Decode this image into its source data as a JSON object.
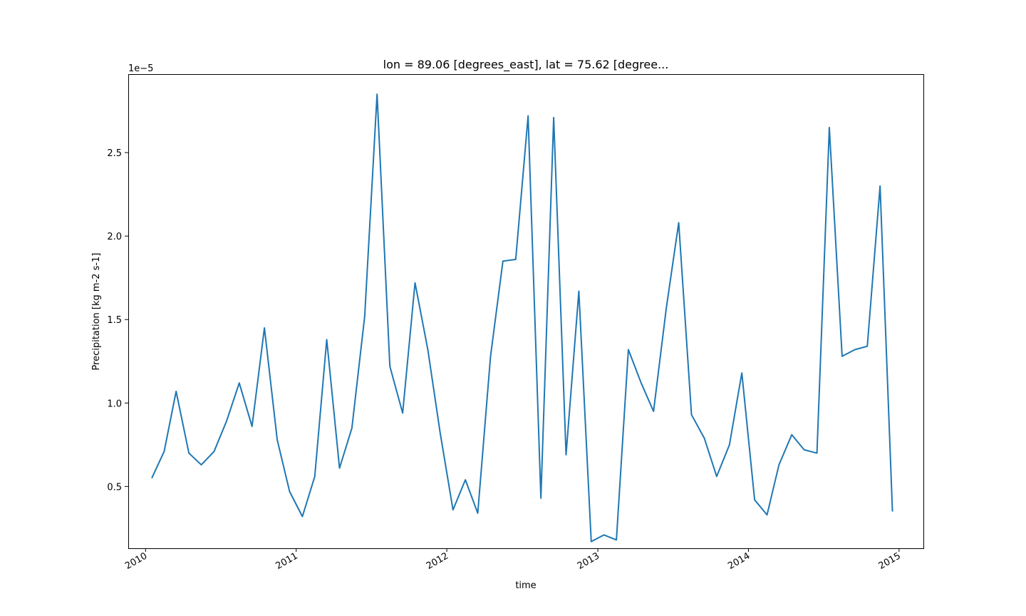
{
  "chart_data": {
    "type": "line",
    "title": "lon = 89.06 [degrees_east], lat = 75.62 [degree...",
    "xlabel": "time",
    "ylabel": "Precipitation [kg m-2 s-1]",
    "y_offset_label": "1e−5",
    "xlim": [
      "2009-11-20",
      "2015-03-01"
    ],
    "ylim": [
      1.3e-06,
      2.97e-05
    ],
    "x_ticks": [
      {
        "value": "2010-01-01",
        "label": "2010"
      },
      {
        "value": "2011-01-01",
        "label": "2011"
      },
      {
        "value": "2012-01-01",
        "label": "2012"
      },
      {
        "value": "2013-01-01",
        "label": "2013"
      },
      {
        "value": "2014-01-01",
        "label": "2014"
      },
      {
        "value": "2015-01-01",
        "label": "2015"
      }
    ],
    "y_ticks": [
      {
        "value": 5e-06,
        "label": "0.5"
      },
      {
        "value": 1e-05,
        "label": "1.0"
      },
      {
        "value": 1.5e-05,
        "label": "1.5"
      },
      {
        "value": 2e-05,
        "label": "2.0"
      },
      {
        "value": 2.5e-05,
        "label": "2.5"
      }
    ],
    "grid": false,
    "line_color": "#1f77b4",
    "series": [
      {
        "x": [
          "2010-01-16",
          "2010-02-15",
          "2010-03-16",
          "2010-04-16",
          "2010-05-16",
          "2010-06-16",
          "2010-07-16",
          "2010-08-16",
          "2010-09-16",
          "2010-10-16",
          "2010-11-16",
          "2010-12-16",
          "2011-01-16",
          "2011-02-15",
          "2011-03-16",
          "2011-04-16",
          "2011-05-16",
          "2011-06-16",
          "2011-07-16",
          "2011-08-16",
          "2011-09-16",
          "2011-10-16",
          "2011-11-16",
          "2011-12-16",
          "2012-01-16",
          "2012-02-15",
          "2012-03-16",
          "2012-04-16",
          "2012-05-16",
          "2012-06-16",
          "2012-07-16",
          "2012-08-16",
          "2012-09-16",
          "2012-10-16",
          "2012-11-16",
          "2012-12-16",
          "2013-01-16",
          "2013-02-15",
          "2013-03-16",
          "2013-04-16",
          "2013-05-16",
          "2013-06-16",
          "2013-07-16",
          "2013-08-16",
          "2013-09-16",
          "2013-10-16",
          "2013-11-16",
          "2013-12-16",
          "2014-01-16",
          "2014-02-15",
          "2014-03-16",
          "2014-04-16",
          "2014-05-16",
          "2014-06-16",
          "2014-07-16",
          "2014-08-16",
          "2014-09-16",
          "2014-10-16",
          "2014-11-16",
          "2014-12-16"
        ],
        "values": [
          5.5e-06,
          7.1e-06,
          1.07e-05,
          7e-06,
          6.3e-06,
          7.1e-06,
          8.9e-06,
          1.12e-05,
          8.6e-06,
          1.45e-05,
          7.8e-06,
          4.7e-06,
          3.2e-06,
          5.6e-06,
          1.38e-05,
          6.1e-06,
          8.5e-06,
          1.52e-05,
          2.85e-05,
          1.22e-05,
          9.4e-06,
          1.72e-05,
          1.32e-05,
          8.2e-06,
          3.6e-06,
          5.4e-06,
          3.4e-06,
          1.28e-05,
          1.85e-05,
          1.86e-05,
          2.72e-05,
          4.3e-06,
          2.71e-05,
          6.9e-06,
          1.67e-05,
          1.7e-06,
          2.1e-06,
          1.8e-06,
          1.32e-05,
          1.12e-05,
          9.5e-06,
          1.57e-05,
          2.08e-05,
          9.3e-06,
          7.9e-06,
          5.6e-06,
          7.5e-06,
          1.18e-05,
          4.2e-06,
          3.3e-06,
          6.3e-06,
          8.1e-06,
          7.2e-06,
          7e-06,
          2.65e-05,
          1.28e-05,
          1.32e-05,
          1.34e-05,
          2.3e-05,
          3.5e-06
        ]
      }
    ]
  }
}
